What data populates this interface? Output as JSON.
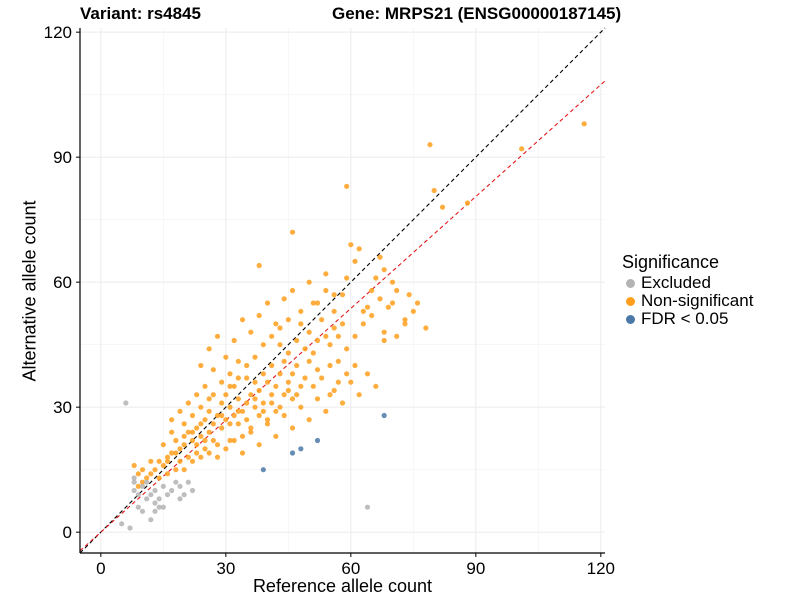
{
  "header": {
    "variant_title": "Variant: rs4845",
    "gene_title": "Gene: MRPS21 (ENSG00000187145)"
  },
  "chart_data": {
    "type": "scatter",
    "xlabel": "Reference allele count",
    "ylabel": "Alternative allele count",
    "xlim": [
      -5,
      121
    ],
    "ylim": [
      -5,
      121
    ],
    "xticks": [
      0,
      30,
      60,
      90,
      120
    ],
    "yticks": [
      0,
      30,
      60,
      90,
      120
    ],
    "grid": true,
    "legend_title": "Significance",
    "legend_position": "right",
    "reference_lines": [
      {
        "style": "dashed",
        "color": "#000000",
        "intercept": 0,
        "slope": 1
      },
      {
        "style": "dashed",
        "color": "#e41a1c",
        "intercept": 0,
        "slope": 0.895
      }
    ],
    "series": [
      {
        "name": "Excluded",
        "color": "#b3b3b3",
        "points": [
          [
            6,
            31
          ],
          [
            5,
            2
          ],
          [
            7,
            1
          ],
          [
            8,
            10
          ],
          [
            8,
            12
          ],
          [
            8,
            13
          ],
          [
            9,
            6
          ],
          [
            9,
            9
          ],
          [
            10,
            5
          ],
          [
            10,
            11
          ],
          [
            11,
            8
          ],
          [
            11,
            12
          ],
          [
            12,
            3
          ],
          [
            12,
            9
          ],
          [
            13,
            7
          ],
          [
            13,
            10
          ],
          [
            14,
            6
          ],
          [
            14,
            8
          ],
          [
            15,
            11
          ],
          [
            16,
            9
          ],
          [
            17,
            10
          ],
          [
            18,
            12
          ],
          [
            19,
            8
          ],
          [
            19,
            11
          ],
          [
            20,
            9
          ],
          [
            21,
            12
          ],
          [
            22,
            10
          ],
          [
            64,
            6
          ],
          [
            15,
            6
          ],
          [
            13,
            5
          ]
        ]
      },
      {
        "name": "Non-significant",
        "color": "#ff9f1c",
        "points": [
          [
            116,
            98
          ],
          [
            101,
            92
          ],
          [
            88,
            79
          ],
          [
            82,
            78
          ],
          [
            80,
            82
          ],
          [
            79,
            93
          ],
          [
            59,
            83
          ],
          [
            46,
            72
          ],
          [
            38,
            64
          ],
          [
            78,
            49
          ],
          [
            76,
            55
          ],
          [
            74,
            57
          ],
          [
            73,
            51
          ],
          [
            71,
            58
          ],
          [
            70,
            55
          ],
          [
            70,
            60
          ],
          [
            68,
            63
          ],
          [
            68,
            46
          ],
          [
            68,
            48
          ],
          [
            67,
            66
          ],
          [
            66,
            61
          ],
          [
            65,
            58
          ],
          [
            64,
            54
          ],
          [
            63,
            53
          ],
          [
            62,
            68
          ],
          [
            61,
            65
          ],
          [
            60,
            69
          ],
          [
            59,
            61
          ],
          [
            59,
            44
          ],
          [
            58,
            57
          ],
          [
            58,
            50
          ],
          [
            57,
            47
          ],
          [
            57,
            41
          ],
          [
            56,
            49
          ],
          [
            56,
            53
          ],
          [
            55,
            45
          ],
          [
            55,
            40
          ],
          [
            54,
            47
          ],
          [
            54,
            58
          ],
          [
            53,
            51
          ],
          [
            52,
            46
          ],
          [
            52,
            39
          ],
          [
            51,
            43
          ],
          [
            51,
            55
          ],
          [
            50,
            48
          ],
          [
            50,
            41
          ],
          [
            49,
            37
          ],
          [
            49,
            44
          ],
          [
            48,
            50
          ],
          [
            48,
            35
          ],
          [
            47,
            40
          ],
          [
            47,
            46
          ],
          [
            46,
            38
          ],
          [
            46,
            32
          ],
          [
            45,
            43
          ],
          [
            45,
            36
          ],
          [
            44,
            41
          ],
          [
            44,
            33
          ],
          [
            43,
            38
          ],
          [
            43,
            45
          ],
          [
            42,
            35
          ],
          [
            42,
            29
          ],
          [
            41,
            40
          ],
          [
            41,
            33
          ],
          [
            40,
            36
          ],
          [
            40,
            27
          ],
          [
            39,
            31
          ],
          [
            39,
            38
          ],
          [
            38,
            34
          ],
          [
            38,
            28
          ],
          [
            37,
            36
          ],
          [
            37,
            30
          ],
          [
            36,
            33
          ],
          [
            36,
            25
          ],
          [
            35,
            31
          ],
          [
            35,
            37
          ],
          [
            34,
            29
          ],
          [
            34,
            23
          ],
          [
            33,
            32
          ],
          [
            33,
            26
          ],
          [
            32,
            28
          ],
          [
            32,
            35
          ],
          [
            31,
            30
          ],
          [
            31,
            22
          ],
          [
            30,
            27
          ],
          [
            30,
            33
          ],
          [
            29,
            25
          ],
          [
            29,
            31
          ],
          [
            28,
            28
          ],
          [
            28,
            21
          ],
          [
            27,
            26
          ],
          [
            27,
            33
          ],
          [
            26,
            24
          ],
          [
            26,
            29
          ],
          [
            25,
            27
          ],
          [
            25,
            20
          ],
          [
            24,
            23
          ],
          [
            24,
            30
          ],
          [
            23,
            25
          ],
          [
            23,
            19
          ],
          [
            22,
            22
          ],
          [
            22,
            28
          ],
          [
            21,
            24
          ],
          [
            21,
            18
          ],
          [
            20,
            21
          ],
          [
            20,
            26
          ],
          [
            19,
            20
          ],
          [
            19,
            17
          ],
          [
            18,
            22
          ],
          [
            18,
            15
          ],
          [
            17,
            19
          ],
          [
            17,
            24
          ],
          [
            16,
            18
          ],
          [
            16,
            14
          ],
          [
            15,
            16
          ],
          [
            15,
            21
          ],
          [
            14,
            17
          ],
          [
            14,
            13
          ],
          [
            13,
            15
          ],
          [
            12,
            14
          ],
          [
            12,
            17
          ],
          [
            11,
            13
          ],
          [
            10,
            15
          ],
          [
            10,
            12
          ],
          [
            9,
            14
          ],
          [
            9,
            11
          ],
          [
            8,
            16
          ],
          [
            24,
            40
          ],
          [
            26,
            44
          ],
          [
            28,
            47
          ],
          [
            30,
            42
          ],
          [
            32,
            46
          ],
          [
            34,
            51
          ],
          [
            36,
            48
          ],
          [
            38,
            52
          ],
          [
            40,
            55
          ],
          [
            42,
            50
          ],
          [
            44,
            56
          ],
          [
            46,
            58
          ],
          [
            48,
            53
          ],
          [
            50,
            60
          ],
          [
            52,
            55
          ],
          [
            54,
            62
          ],
          [
            56,
            57
          ],
          [
            33,
            41
          ],
          [
            31,
            38
          ],
          [
            29,
            36
          ],
          [
            27,
            39
          ],
          [
            25,
            35
          ],
          [
            23,
            33
          ],
          [
            21,
            31
          ],
          [
            19,
            29
          ],
          [
            17,
            27
          ],
          [
            28,
            18
          ],
          [
            30,
            20
          ],
          [
            32,
            22
          ],
          [
            34,
            19
          ],
          [
            36,
            24
          ],
          [
            38,
            21
          ],
          [
            40,
            26
          ],
          [
            42,
            23
          ],
          [
            44,
            28
          ],
          [
            46,
            25
          ],
          [
            48,
            30
          ],
          [
            50,
            27
          ],
          [
            52,
            32
          ],
          [
            54,
            29
          ],
          [
            56,
            34
          ],
          [
            58,
            31
          ],
          [
            60,
            36
          ],
          [
            62,
            33
          ],
          [
            64,
            38
          ],
          [
            66,
            35
          ],
          [
            26,
            32
          ],
          [
            27,
            22
          ],
          [
            29,
            28
          ],
          [
            31,
            26
          ],
          [
            33,
            29
          ],
          [
            35,
            27
          ],
          [
            37,
            32
          ],
          [
            39,
            29
          ],
          [
            41,
            31
          ],
          [
            43,
            30
          ],
          [
            45,
            34
          ],
          [
            47,
            33
          ],
          [
            24,
            26
          ],
          [
            22,
            24
          ],
          [
            20,
            23
          ],
          [
            18,
            19
          ],
          [
            16,
            17
          ],
          [
            25,
            22
          ],
          [
            23,
            21
          ],
          [
            26,
            19
          ],
          [
            24,
            18
          ],
          [
            22,
            17
          ],
          [
            20,
            15
          ],
          [
            31,
            35
          ],
          [
            33,
            37
          ],
          [
            35,
            40
          ],
          [
            37,
            42
          ],
          [
            39,
            45
          ],
          [
            41,
            47
          ],
          [
            43,
            49
          ],
          [
            45,
            51
          ],
          [
            61,
            47
          ],
          [
            63,
            50
          ],
          [
            65,
            52
          ],
          [
            67,
            56
          ],
          [
            69,
            54
          ],
          [
            71,
            47
          ],
          [
            73,
            50
          ],
          [
            75,
            53
          ],
          [
            59,
            38
          ],
          [
            61,
            40
          ],
          [
            57,
            36
          ],
          [
            55,
            33
          ],
          [
            53,
            37
          ],
          [
            51,
            35
          ]
        ]
      },
      {
        "name": "FDR < 0.05",
        "color": "#4a79a8",
        "points": [
          [
            68,
            28
          ],
          [
            52,
            22
          ],
          [
            48,
            20
          ],
          [
            46,
            19
          ],
          [
            39,
            15
          ]
        ]
      }
    ]
  }
}
